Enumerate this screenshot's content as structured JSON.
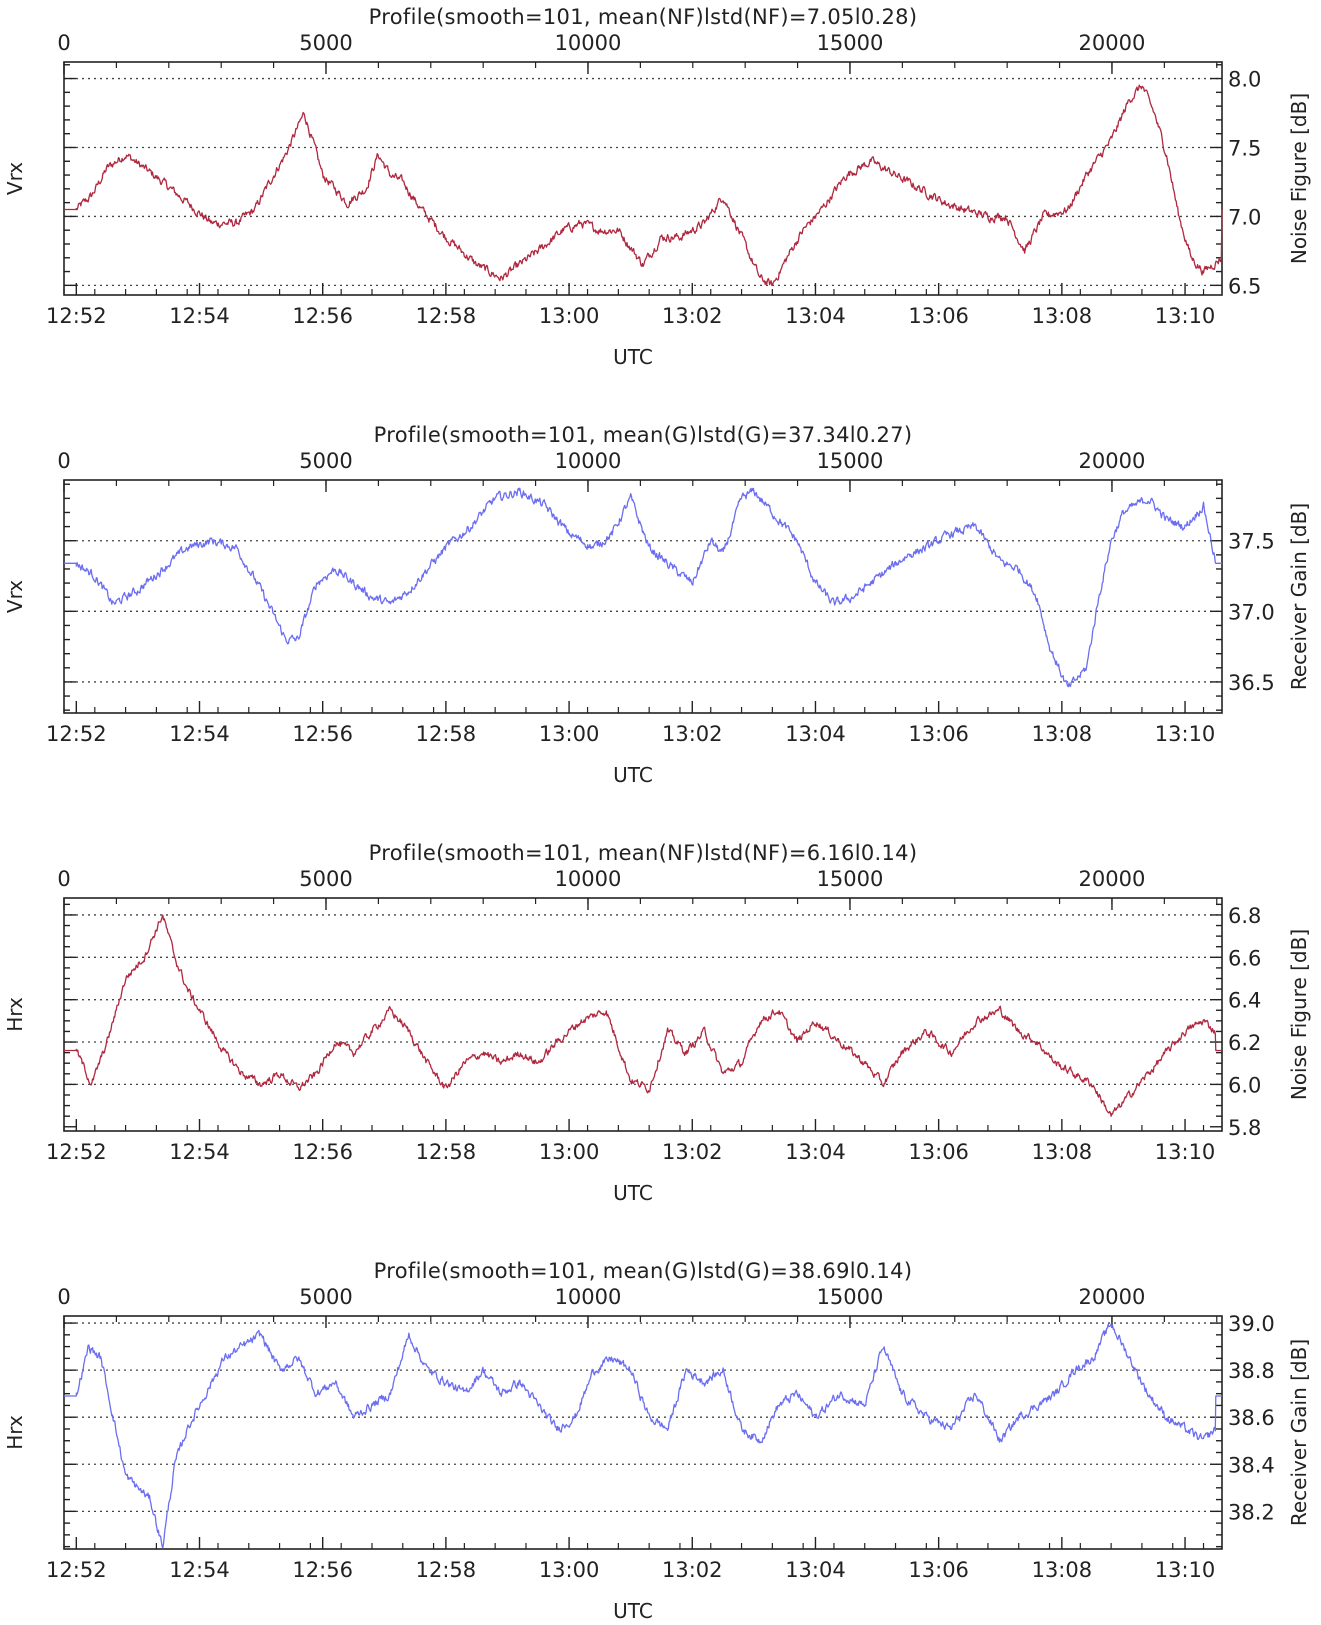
{
  "colors": {
    "nf_series": "#b0283f",
    "gain_series": "#6b6ef0",
    "axis": "#222222",
    "grid": "#444444"
  },
  "top_axis_ticks": [
    "0",
    "5000",
    "10000",
    "15000",
    "20000"
  ],
  "bottom_axis_ticks": [
    "12:52",
    "12:54",
    "12:56",
    "12:58",
    "13:00",
    "13:02",
    "13:04",
    "13:06",
    "13:08",
    "13:10"
  ],
  "chart_data": [
    {
      "type": "line",
      "title": "Profile(smooth=101, mean(NF)|std(NF)=7.05|0.28)",
      "left_label": "Vrx",
      "ylabel": "Noise Figure [dB]",
      "xlabel": "UTC",
      "series_color": "#b0283f",
      "ylim": [
        6.43,
        8.12
      ],
      "yticks": [
        "6.5",
        "7.0",
        "7.5",
        "8.0"
      ],
      "gridlines": [
        6.5,
        7.0,
        7.5,
        8.0
      ],
      "minor_step": 0.1,
      "fill_value": 7.05,
      "x_minutes": [
        -0.3,
        0,
        0.25,
        0.5,
        0.8,
        1.1,
        1.4,
        1.8,
        2.2,
        2.6,
        2.9,
        3.2,
        3.4,
        3.7,
        4.0,
        4.4,
        4.7,
        4.9,
        5.1,
        5.3,
        5.6,
        6.0,
        6.5,
        6.9,
        7.2,
        7.5,
        7.9,
        8.2,
        8.5,
        8.8,
        9.2,
        9.5,
        9.8,
        10.2,
        10.5,
        10.8,
        11.1,
        11.3,
        11.6,
        11.8,
        12.1,
        12.5,
        12.9,
        13.3,
        13.7,
        14.1,
        14.4,
        14.8,
        15.1,
        15.4,
        15.7,
        16.1,
        16.4,
        16.8,
        17.1,
        17.3,
        17.5,
        17.7,
        17.9,
        18.1,
        18.3,
        18.6,
        18.7
      ],
      "y_values": [
        7.05,
        7.05,
        7.15,
        7.35,
        7.45,
        7.35,
        7.25,
        7.1,
        6.95,
        6.95,
        7.05,
        7.3,
        7.45,
        7.75,
        7.3,
        7.1,
        7.2,
        7.45,
        7.3,
        7.25,
        7.05,
        6.85,
        6.65,
        6.55,
        6.65,
        6.75,
        6.9,
        6.95,
        6.9,
        6.9,
        6.65,
        6.85,
        6.85,
        6.95,
        7.15,
        6.85,
        6.55,
        6.5,
        6.75,
        6.9,
        7.05,
        7.3,
        7.4,
        7.3,
        7.2,
        7.1,
        7.05,
        7.0,
        7.0,
        6.75,
        7.0,
        7.05,
        7.3,
        7.55,
        7.85,
        7.95,
        7.75,
        7.45,
        7.0,
        6.7,
        6.6,
        6.7,
        6.62
      ],
      "noise": 0.05
    },
    {
      "type": "line",
      "title": "Profile(smooth=101, mean(G)|std(G)=37.34|0.27)",
      "left_label": "Vrx",
      "ylabel": "Receiver Gain [dB]",
      "xlabel": "UTC",
      "series_color": "#6b6ef0",
      "ylim": [
        36.28,
        37.93
      ],
      "yticks": [
        "36.5",
        "37.0",
        "37.5"
      ],
      "gridlines": [
        36.5,
        37.0,
        37.5
      ],
      "minor_step": 0.1,
      "fill_value": 37.34,
      "x_minutes": [
        -0.3,
        0,
        0.3,
        0.6,
        1.0,
        1.4,
        1.8,
        2.2,
        2.6,
        3.0,
        3.4,
        3.6,
        3.9,
        4.2,
        4.5,
        4.8,
        5.1,
        5.4,
        5.7,
        6.0,
        6.4,
        6.8,
        7.2,
        7.6,
        8.0,
        8.4,
        8.7,
        9.0,
        9.3,
        9.7,
        10.0,
        10.3,
        10.5,
        10.8,
        11.0,
        11.3,
        11.7,
        12.0,
        12.3,
        12.6,
        12.9,
        13.2,
        13.5,
        13.8,
        14.2,
        14.6,
        15.0,
        15.3,
        15.6,
        15.8,
        16.1,
        16.4,
        16.6,
        16.8,
        17.0,
        17.2,
        17.4,
        17.7,
        18.0,
        18.3,
        18.5,
        18.7
      ],
      "y_values": [
        37.34,
        37.34,
        37.25,
        37.05,
        37.15,
        37.3,
        37.45,
        37.5,
        37.45,
        37.15,
        36.8,
        36.8,
        37.2,
        37.3,
        37.2,
        37.1,
        37.05,
        37.15,
        37.3,
        37.45,
        37.6,
        37.8,
        37.85,
        37.75,
        37.55,
        37.45,
        37.55,
        37.8,
        37.45,
        37.3,
        37.2,
        37.5,
        37.4,
        37.8,
        37.85,
        37.7,
        37.5,
        37.2,
        37.05,
        37.1,
        37.2,
        37.3,
        37.4,
        37.45,
        37.55,
        37.6,
        37.35,
        37.3,
        37.1,
        36.75,
        36.45,
        36.6,
        37.1,
        37.5,
        37.7,
        37.75,
        37.8,
        37.65,
        37.6,
        37.75,
        37.34,
        37.34
      ],
      "noise": 0.05
    },
    {
      "type": "line",
      "title": "Profile(smooth=101, mean(NF)|std(NF)=6.16|0.14)",
      "left_label": "Hrx",
      "ylabel": "Noise Figure [dB]",
      "xlabel": "UTC",
      "series_color": "#b0283f",
      "ylim": [
        5.78,
        6.88
      ],
      "yticks": [
        "5.8",
        "6.0",
        "6.2",
        "6.4",
        "6.6",
        "6.8"
      ],
      "gridlines": [
        6.0,
        6.2,
        6.4,
        6.6,
        6.8
      ],
      "minor_step": 0.05,
      "fill_value": 6.16,
      "x_minutes": [
        -0.3,
        0,
        0.25,
        0.5,
        0.8,
        1.1,
        1.4,
        1.6,
        1.8,
        2.1,
        2.4,
        2.7,
        3.0,
        3.3,
        3.6,
        3.9,
        4.2,
        4.5,
        4.8,
        5.1,
        5.4,
        5.7,
        6.0,
        6.3,
        6.6,
        6.9,
        7.2,
        7.5,
        7.8,
        8.2,
        8.6,
        9.0,
        9.3,
        9.6,
        9.9,
        10.2,
        10.5,
        10.8,
        11.1,
        11.4,
        11.7,
        12.0,
        12.4,
        12.8,
        13.1,
        13.4,
        13.8,
        14.2,
        14.6,
        15.0,
        15.3,
        15.6,
        15.9,
        16.2,
        16.5,
        16.8,
        17.1,
        17.4,
        17.7,
        18.0,
        18.3,
        18.5,
        18.7
      ],
      "y_values": [
        6.16,
        6.16,
        6.0,
        6.2,
        6.5,
        6.6,
        6.8,
        6.6,
        6.45,
        6.3,
        6.15,
        6.05,
        6.0,
        6.05,
        5.98,
        6.05,
        6.2,
        6.15,
        6.25,
        6.35,
        6.25,
        6.1,
        5.98,
        6.1,
        6.15,
        6.1,
        6.15,
        6.1,
        6.2,
        6.3,
        6.35,
        6.02,
        5.98,
        6.25,
        6.15,
        6.25,
        6.05,
        6.1,
        6.3,
        6.35,
        6.2,
        6.3,
        6.2,
        6.1,
        6.0,
        6.15,
        6.25,
        6.15,
        6.3,
        6.35,
        6.25,
        6.2,
        6.1,
        6.05,
        6.0,
        5.85,
        5.95,
        6.05,
        6.15,
        6.25,
        6.3,
        6.25,
        6.16
      ],
      "noise": 0.03
    },
    {
      "type": "line",
      "title": "Profile(smooth=101, mean(G)|std(G)=38.69|0.14)",
      "left_label": "Hrx",
      "ylabel": "Receiver Gain [dB]",
      "xlabel": "UTC",
      "series_color": "#6b6ef0",
      "ylim": [
        38.04,
        39.03
      ],
      "yticks": [
        "38.2",
        "38.4",
        "38.6",
        "38.8",
        "39.0"
      ],
      "gridlines": [
        38.2,
        38.4,
        38.6,
        38.8,
        39.0
      ],
      "minor_step": 0.05,
      "fill_value": 38.69,
      "x_minutes": [
        -0.3,
        0,
        0.2,
        0.4,
        0.6,
        0.8,
        1.0,
        1.2,
        1.4,
        1.6,
        1.8,
        2.1,
        2.4,
        2.7,
        3.0,
        3.3,
        3.6,
        3.9,
        4.2,
        4.5,
        4.8,
        5.1,
        5.4,
        5.7,
        6.0,
        6.3,
        6.6,
        6.9,
        7.2,
        7.5,
        7.8,
        8.1,
        8.4,
        8.7,
        9.0,
        9.3,
        9.6,
        9.9,
        10.2,
        10.5,
        10.8,
        11.1,
        11.4,
        11.7,
        12.0,
        12.4,
        12.8,
        13.1,
        13.4,
        13.8,
        14.2,
        14.6,
        15.0,
        15.3,
        15.6,
        15.9,
        16.2,
        16.5,
        16.8,
        17.1,
        17.4,
        17.7,
        18.0,
        18.3,
        18.5,
        18.7
      ],
      "y_values": [
        38.69,
        38.69,
        38.9,
        38.85,
        38.6,
        38.35,
        38.3,
        38.25,
        38.05,
        38.4,
        38.55,
        38.7,
        38.85,
        38.9,
        38.95,
        38.8,
        38.85,
        38.7,
        38.75,
        38.6,
        38.65,
        38.7,
        38.95,
        38.8,
        38.75,
        38.7,
        38.8,
        38.7,
        38.75,
        38.65,
        38.55,
        38.6,
        38.8,
        38.85,
        38.8,
        38.6,
        38.55,
        38.8,
        38.75,
        38.8,
        38.55,
        38.5,
        38.65,
        38.7,
        38.6,
        38.7,
        38.65,
        38.9,
        38.7,
        38.6,
        38.55,
        38.7,
        38.5,
        38.6,
        38.65,
        38.7,
        38.8,
        38.85,
        39.0,
        38.85,
        38.7,
        38.6,
        38.55,
        38.5,
        38.55,
        38.69
      ],
      "noise": 0.03
    }
  ]
}
